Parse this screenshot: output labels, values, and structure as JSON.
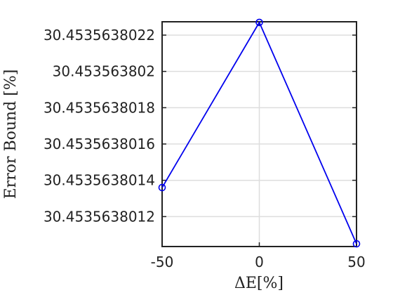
{
  "chart_data": {
    "type": "line",
    "title": "",
    "xlabel": "ΔE[%]",
    "ylabel": "Error Bound [%]",
    "x": [
      -50,
      0,
      50
    ],
    "series": [
      {
        "values": [
          30.45356380136,
          30.45356380227,
          30.45356380105
        ],
        "color": "#0000ee",
        "marker": "circle"
      }
    ],
    "xlim": [
      -50,
      50
    ],
    "ylim": [
      30.453563801035,
      30.4535638022735
    ],
    "xticks": [
      -50,
      0,
      50
    ],
    "xtick_labels": [
      "-50",
      "0",
      "50"
    ],
    "yticks": [
      30.4535638012,
      30.4535638014,
      30.4535638016,
      30.4535638018,
      30.453563802,
      30.4535638022
    ],
    "ytick_labels": [
      "30.4535638012",
      "30.4535638014",
      "30.4535638016",
      "30.4535638018",
      "30.453563802",
      "30.4535638022"
    ],
    "grid": true,
    "grid_color": "#dddddd",
    "axis_color": "#222222"
  }
}
